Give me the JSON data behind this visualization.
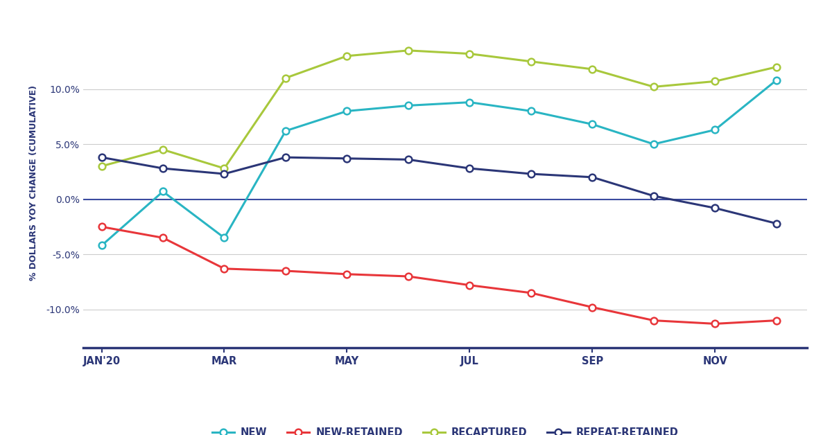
{
  "month_positions": [
    0,
    1,
    2,
    3,
    4,
    5,
    6,
    7,
    8,
    9,
    10,
    11
  ],
  "x_tick_positions": [
    0,
    2,
    4,
    6,
    8,
    10
  ],
  "x_tick_labels": [
    "JAN'20",
    "MAR",
    "MAY",
    "JUL",
    "SEP",
    "NOV"
  ],
  "new": [
    -4.2,
    0.7,
    -3.5,
    6.2,
    8.0,
    8.5,
    8.8,
    8.0,
    6.8,
    5.0,
    6.3,
    10.8
  ],
  "new_retained": [
    -2.5,
    -3.5,
    -6.3,
    -6.5,
    -6.8,
    -7.0,
    -7.8,
    -8.5,
    -9.8,
    -11.0,
    -11.3,
    -11.0
  ],
  "recaptured": [
    3.0,
    4.5,
    2.8,
    11.0,
    13.0,
    13.5,
    13.2,
    12.5,
    11.8,
    10.2,
    10.7,
    12.0
  ],
  "repeat_retained": [
    3.8,
    2.8,
    2.3,
    3.8,
    3.7,
    3.6,
    2.8,
    2.3,
    2.0,
    0.3,
    -0.8,
    -2.2
  ],
  "new_color": "#29B5C3",
  "new_retained_color": "#E8363A",
  "recaptured_color": "#A8C83C",
  "repeat_retained_color": "#2B3677",
  "background_color": "#ffffff",
  "ylabel": "% DOLLARS YOY CHANGE (CUMULATIVE)",
  "ylim": [
    -13.5,
    16.5
  ],
  "yticks": [
    -10.0,
    -5.0,
    0.0,
    5.0,
    10.0
  ],
  "zero_line_color": "#3B4BA0",
  "axis_color": "#2B3677",
  "grid_color": "#cccccc",
  "legend_labels": [
    "NEW",
    "NEW-RETAINED",
    "RECAPTURED",
    "REPEAT-RETAINED"
  ],
  "marker_size": 7,
  "line_width": 2.2
}
